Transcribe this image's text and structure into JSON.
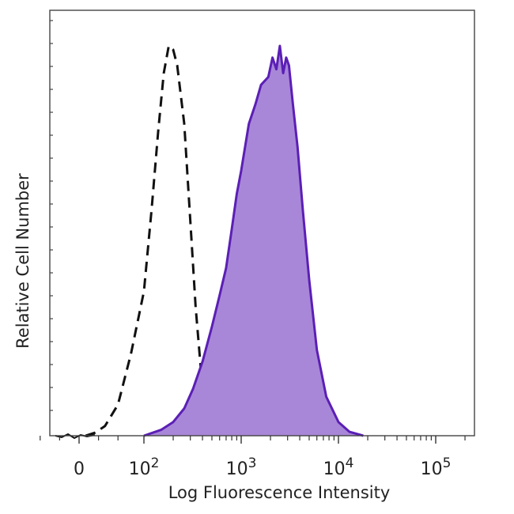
{
  "chart_data": {
    "type": "area",
    "xlabel": "Log Fluorescence Intensity",
    "ylabel": "Relative Cell Number",
    "x_scale": "biexponential (log above 10^2)",
    "x_ticks": [
      {
        "value": 0,
        "base": "0",
        "exp": ""
      },
      {
        "value": 100,
        "base": "10",
        "exp": "2"
      },
      {
        "value": 1000,
        "base": "10",
        "exp": "3"
      },
      {
        "value": 10000,
        "base": "10",
        "exp": "4"
      },
      {
        "value": 100000,
        "base": "10",
        "exp": "5"
      }
    ],
    "ylim": [
      0,
      100
    ],
    "grid": false,
    "legend": "none",
    "series": [
      {
        "style": "dashed-outline",
        "color": "#111111",
        "points": [
          [
            10,
            0
          ],
          [
            25,
            0.8
          ],
          [
            40,
            2.5
          ],
          [
            60,
            8
          ],
          [
            80,
            21
          ],
          [
            100,
            37
          ],
          [
            120,
            58
          ],
          [
            140,
            78
          ],
          [
            160,
            93
          ],
          [
            180,
            100
          ],
          [
            200,
            99
          ],
          [
            220,
            95
          ],
          [
            260,
            80
          ],
          [
            300,
            55
          ],
          [
            340,
            33
          ],
          [
            400,
            12
          ],
          [
            460,
            4
          ],
          [
            520,
            1.5
          ],
          [
            580,
            0
          ]
        ]
      },
      {
        "style": "filled",
        "color": "#5b1fb5",
        "fill": "#a987d8",
        "points": [
          [
            100,
            0
          ],
          [
            150,
            1.5
          ],
          [
            200,
            3.5
          ],
          [
            260,
            7
          ],
          [
            320,
            12
          ],
          [
            400,
            19
          ],
          [
            500,
            28
          ],
          [
            600,
            36
          ],
          [
            700,
            43
          ],
          [
            800,
            53
          ],
          [
            900,
            62
          ],
          [
            1000,
            68
          ],
          [
            1200,
            80
          ],
          [
            1400,
            85
          ],
          [
            1600,
            90
          ],
          [
            1900,
            92
          ],
          [
            2100,
            97
          ],
          [
            2300,
            94
          ],
          [
            2500,
            100
          ],
          [
            2700,
            93
          ],
          [
            2900,
            97
          ],
          [
            3100,
            95
          ],
          [
            3400,
            85
          ],
          [
            3800,
            74
          ],
          [
            4300,
            58
          ],
          [
            5000,
            40
          ],
          [
            6000,
            22
          ],
          [
            7500,
            10
          ],
          [
            10000,
            3.5
          ],
          [
            13000,
            1
          ],
          [
            18000,
            0
          ]
        ]
      }
    ]
  }
}
